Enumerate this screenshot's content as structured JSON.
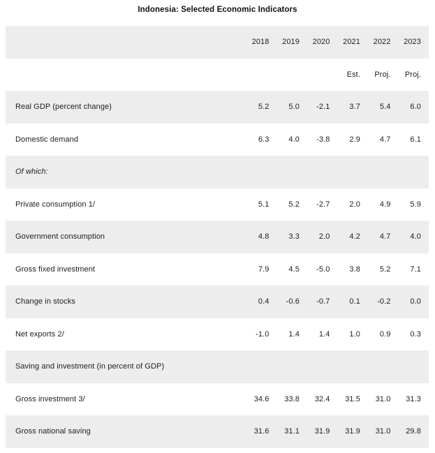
{
  "colors": {
    "alt_row_bg": "#ededed",
    "text": "#1d1d1d",
    "title": "#111111"
  },
  "chart_data": {
    "type": "table",
    "title": "Indonesia: Selected Economic Indicators",
    "columns": [
      "2018",
      "2019",
      "2020",
      "2021",
      "2022",
      "2023"
    ],
    "column_subheaders": [
      "",
      "",
      "",
      "Est.",
      "Proj.",
      "Proj."
    ],
    "rows": [
      {
        "label": "Real GDP (percent change)",
        "values": [
          "5.2",
          "5.0",
          "-2.1",
          "3.7",
          "5.4",
          "6.0"
        ]
      },
      {
        "label": "Domestic demand",
        "values": [
          "6.3",
          "4.0",
          "-3.8",
          "2.9",
          "4.7",
          "6.1"
        ]
      },
      {
        "label": "Of which:",
        "values": []
      },
      {
        "label": "Private consumption 1/",
        "values": [
          "5.1",
          "5.2",
          "-2.7",
          "2.0",
          "4.9",
          "5.9"
        ]
      },
      {
        "label": "Government consumption",
        "values": [
          "4.8",
          "3.3",
          "2.0",
          "4.2",
          "4.7",
          "4.0"
        ]
      },
      {
        "label": "Gross fixed investment",
        "values": [
          "7.9",
          "4.5",
          "-5.0",
          "3.8",
          "5.2",
          "7.1"
        ]
      },
      {
        "label": "Change in stocks",
        "values": [
          "0.4",
          "-0.6",
          "-0.7",
          "0.1",
          "-0.2",
          "0.0"
        ]
      },
      {
        "label": "Net exports 2/",
        "values": [
          "-1.0",
          "1.4",
          "1.4",
          "1.0",
          "0.9",
          "0.3"
        ]
      },
      {
        "label": "Saving and investment (in percent of GDP)",
        "values": []
      },
      {
        "label": "Gross investment 3/",
        "values": [
          "34.6",
          "33.8",
          "32.4",
          "31.5",
          "31.0",
          "31.3"
        ]
      },
      {
        "label": "Gross national saving",
        "values": [
          "31.6",
          "31.1",
          "31.9",
          "31.9",
          "31.0",
          "29.8"
        ]
      }
    ]
  }
}
